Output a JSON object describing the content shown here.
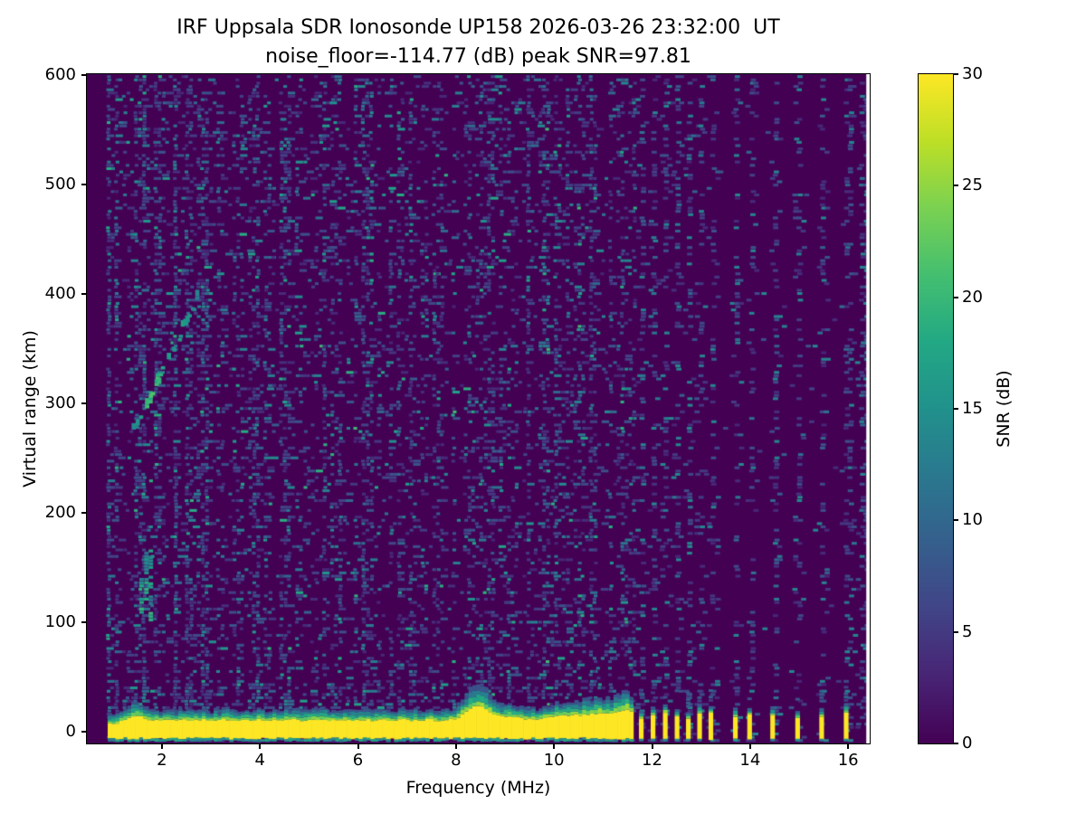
{
  "figure": {
    "kind": "matplotlib-style ionogram figure",
    "background": "#ffffff"
  },
  "chart_data": {
    "type": "heatmap",
    "title": "IRF Uppsala SDR Ionosonde UP158 2026-03-26 23:32:00  UT",
    "subtitle": "noise_floor=-114.77 (dB) peak SNR=97.81",
    "xlabel": "Frequency (MHz)",
    "ylabel": "Virtual range (km)",
    "colorbar_label": "SNR (dB)",
    "station": "UP158",
    "timestamp_ut": "2026-03-26 23:32:00",
    "noise_floor_db": -114.77,
    "peak_snr_db": 97.81,
    "x_ticks": [
      2,
      4,
      6,
      8,
      10,
      12,
      14,
      16
    ],
    "y_ticks": [
      0,
      100,
      200,
      300,
      400,
      500,
      600
    ],
    "colorbar_ticks": [
      0,
      5,
      10,
      15,
      20,
      25,
      30
    ],
    "x_range": [
      0.47,
      16.44
    ],
    "y_range": [
      -10.4,
      600.5
    ],
    "snr_range": [
      0,
      30
    ],
    "data_freq_range": [
      0.88,
      16.37
    ],
    "grid": false,
    "colormap": {
      "name": "viridis",
      "stops": [
        [
          0.0,
          "#440154"
        ],
        [
          0.1,
          "#482475"
        ],
        [
          0.2,
          "#414487"
        ],
        [
          0.3,
          "#355f8d"
        ],
        [
          0.4,
          "#2a788e"
        ],
        [
          0.5,
          "#21918c"
        ],
        [
          0.6,
          "#22a884"
        ],
        [
          0.7,
          "#44bf70"
        ],
        [
          0.8,
          "#7ad151"
        ],
        [
          0.9,
          "#bddf26"
        ],
        [
          1.0,
          "#fde725"
        ]
      ]
    },
    "features": {
      "noise_seed": 20260326,
      "ground_pulse_band": {
        "f_start": 0.9,
        "f_end": 11.62,
        "km_top_base": 11,
        "km_bottom": -5,
        "bumps": [
          {
            "f": 1.45,
            "sigma": 0.1,
            "extra_km": 4
          },
          {
            "f": 8.4,
            "sigma": 0.22,
            "extra_km": 13
          },
          {
            "f": 9.0,
            "sigma": 0.25,
            "extra_km": 3
          },
          {
            "f": 10.2,
            "sigma": 0.3,
            "extra_km": 4
          },
          {
            "f": 11.0,
            "sigma": 0.35,
            "extra_km": 6
          },
          {
            "f": 11.45,
            "sigma": 0.15,
            "extra_km": 7
          }
        ]
      },
      "discrete_sounding_frequencies_mhz": [
        11.78,
        12.02,
        12.27,
        12.51,
        12.74,
        12.97,
        13.2,
        13.7,
        13.99,
        14.46,
        14.97,
        15.46,
        15.96
      ],
      "rfi_extra_columns_mhz": [
        16.28
      ],
      "echo_trace": {
        "f_start": 1.4,
        "f_end": 2.7,
        "km_start": 272,
        "km_end": 395,
        "bright_center_s": 0.28
      },
      "sporadic_columns": [
        {
          "f": 1.77,
          "km_min": 95,
          "km_max": 175
        },
        {
          "f": 1.58,
          "km_min": 105,
          "km_max": 140
        },
        {
          "f": 1.68,
          "km_min": 120,
          "km_max": 165
        }
      ]
    }
  }
}
